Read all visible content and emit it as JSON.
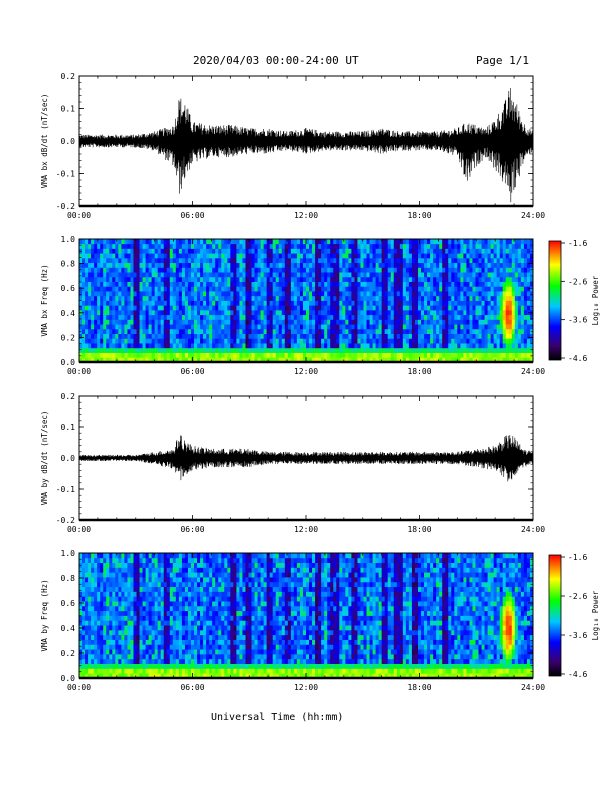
{
  "header": {
    "title": "2020/04/03  00:00-24:00 UT",
    "page": "Page 1/1"
  },
  "x_axis": {
    "label": "Universal Time (hh:mm)",
    "ticks": [
      "00:00",
      "06:00",
      "12:00",
      "18:00",
      "24:00"
    ]
  },
  "colorbar": {
    "label": "Log₁₀ Power",
    "ticks": [
      "-1.6",
      "-2.6",
      "-3.6",
      "-4.6"
    ]
  },
  "chart_data": [
    {
      "type": "line",
      "name": "bx_waveform",
      "ylabel": "VMA bx dB/dt (nT/sec)",
      "xlim": [
        0,
        24
      ],
      "ylim": [
        -0.2,
        0.2
      ],
      "yticks": [
        "0.2",
        "0.1",
        "0.0",
        "-0.1",
        "-0.2"
      ],
      "x": [
        0,
        1,
        2,
        3,
        4,
        5,
        5.3,
        5.6,
        6,
        7,
        8,
        9,
        10,
        11,
        12,
        13,
        14,
        15,
        16,
        17,
        18,
        19,
        20,
        20.5,
        21,
        21.5,
        22,
        22.5,
        22.8,
        23,
        23.5,
        24
      ],
      "y_max": [
        0.02,
        0.02,
        0.02,
        0.02,
        0.03,
        0.05,
        0.14,
        0.13,
        0.06,
        0.05,
        0.05,
        0.04,
        0.04,
        0.03,
        0.04,
        0.03,
        0.03,
        0.03,
        0.04,
        0.03,
        0.03,
        0.03,
        0.04,
        0.06,
        0.05,
        0.04,
        0.07,
        0.12,
        0.17,
        0.14,
        0.06,
        0.03
      ],
      "y_min": [
        -0.02,
        -0.02,
        -0.02,
        -0.02,
        -0.03,
        -0.08,
        -0.17,
        -0.12,
        -0.07,
        -0.05,
        -0.05,
        -0.04,
        -0.04,
        -0.03,
        -0.04,
        -0.03,
        -0.03,
        -0.03,
        -0.04,
        -0.03,
        -0.03,
        -0.03,
        -0.05,
        -0.14,
        -0.08,
        -0.05,
        -0.09,
        -0.14,
        -0.2,
        -0.16,
        -0.07,
        -0.03
      ]
    },
    {
      "type": "heatmap",
      "name": "bx_spectrogram",
      "ylabel": "VMA bx Freq (Hz)",
      "xlim": [
        0,
        24
      ],
      "ylim": [
        0,
        1
      ],
      "yticks": [
        "1.0",
        "0.8",
        "0.6",
        "0.4",
        "0.2",
        "0.0"
      ],
      "zlim": [
        -4.6,
        -1.6
      ]
    },
    {
      "type": "line",
      "name": "by_waveform",
      "ylabel": "VMA by dB/dt (nT/sec)",
      "xlim": [
        0,
        24
      ],
      "ylim": [
        -0.2,
        0.2
      ],
      "yticks": [
        "0.2",
        "0.1",
        "0.0",
        "-0.1",
        "-0.2"
      ],
      "x": [
        0,
        1,
        2,
        3,
        4,
        5,
        5.3,
        5.6,
        6,
        7,
        8,
        9,
        10,
        11,
        12,
        13,
        14,
        15,
        16,
        17,
        18,
        19,
        20,
        21,
        22,
        22.5,
        22.8,
        23,
        23.5,
        24
      ],
      "y_max": [
        0.01,
        0.01,
        0.01,
        0.01,
        0.02,
        0.03,
        0.08,
        0.06,
        0.04,
        0.03,
        0.03,
        0.03,
        0.02,
        0.02,
        0.02,
        0.02,
        0.02,
        0.02,
        0.02,
        0.02,
        0.02,
        0.02,
        0.02,
        0.03,
        0.04,
        0.07,
        0.08,
        0.07,
        0.03,
        0.02
      ],
      "y_min": [
        -0.01,
        -0.01,
        -0.01,
        -0.01,
        -0.02,
        -0.04,
        -0.08,
        -0.06,
        -0.04,
        -0.03,
        -0.03,
        -0.03,
        -0.02,
        -0.02,
        -0.02,
        -0.02,
        -0.02,
        -0.02,
        -0.02,
        -0.02,
        -0.02,
        -0.02,
        -0.02,
        -0.03,
        -0.04,
        -0.07,
        -0.09,
        -0.06,
        -0.03,
        -0.02
      ]
    },
    {
      "type": "heatmap",
      "name": "by_spectrogram",
      "ylabel": "VMA by Freq (Hz)",
      "xlim": [
        0,
        24
      ],
      "ylim": [
        0,
        1
      ],
      "yticks": [
        "1.0",
        "0.8",
        "0.6",
        "0.4",
        "0.2",
        "0.0"
      ],
      "zlim": [
        -4.6,
        -1.6
      ]
    }
  ]
}
